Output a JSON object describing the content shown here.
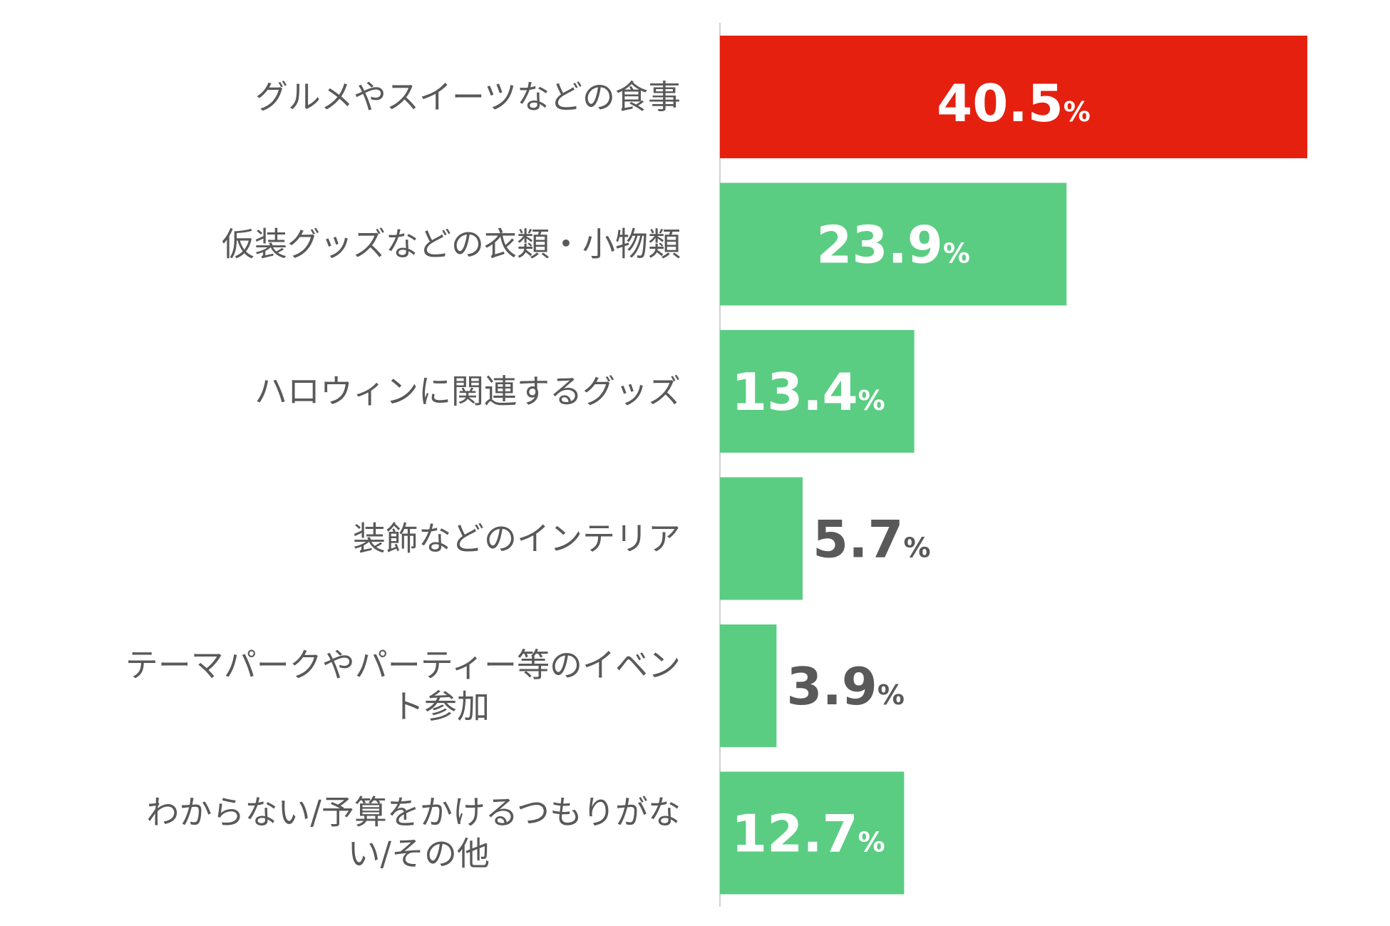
{
  "chart_data": {
    "type": "bar",
    "orientation": "horizontal",
    "categories": [
      [
        "グルメやスイーツなどの食事"
      ],
      [
        "仮装グッズなどの衣類・小物類"
      ],
      [
        "ハロウィンに関連するグッズ"
      ],
      [
        "装飾などのインテリア"
      ],
      [
        "テーマパークやパーティー等のイベン",
        "ト参加"
      ],
      [
        "わからない/予算をかけるつもりがな",
        "い/その他"
      ]
    ],
    "values": [
      40.5,
      23.9,
      13.4,
      5.7,
      3.9,
      12.7
    ],
    "value_labels": [
      "40.5",
      "23.9",
      "13.4",
      "5.7",
      "3.9",
      "12.7"
    ],
    "unit": "%",
    "xlim": [
      0,
      40.5
    ],
    "grid": false,
    "legend": "none",
    "highlight_index": 0,
    "colors": {
      "highlight": "#e5200f",
      "bar": "#5acd82",
      "label_inside": "#ffffff",
      "label_outside": "#595959",
      "category_text": "#595959",
      "axis_line": "#d0d0d0"
    }
  }
}
